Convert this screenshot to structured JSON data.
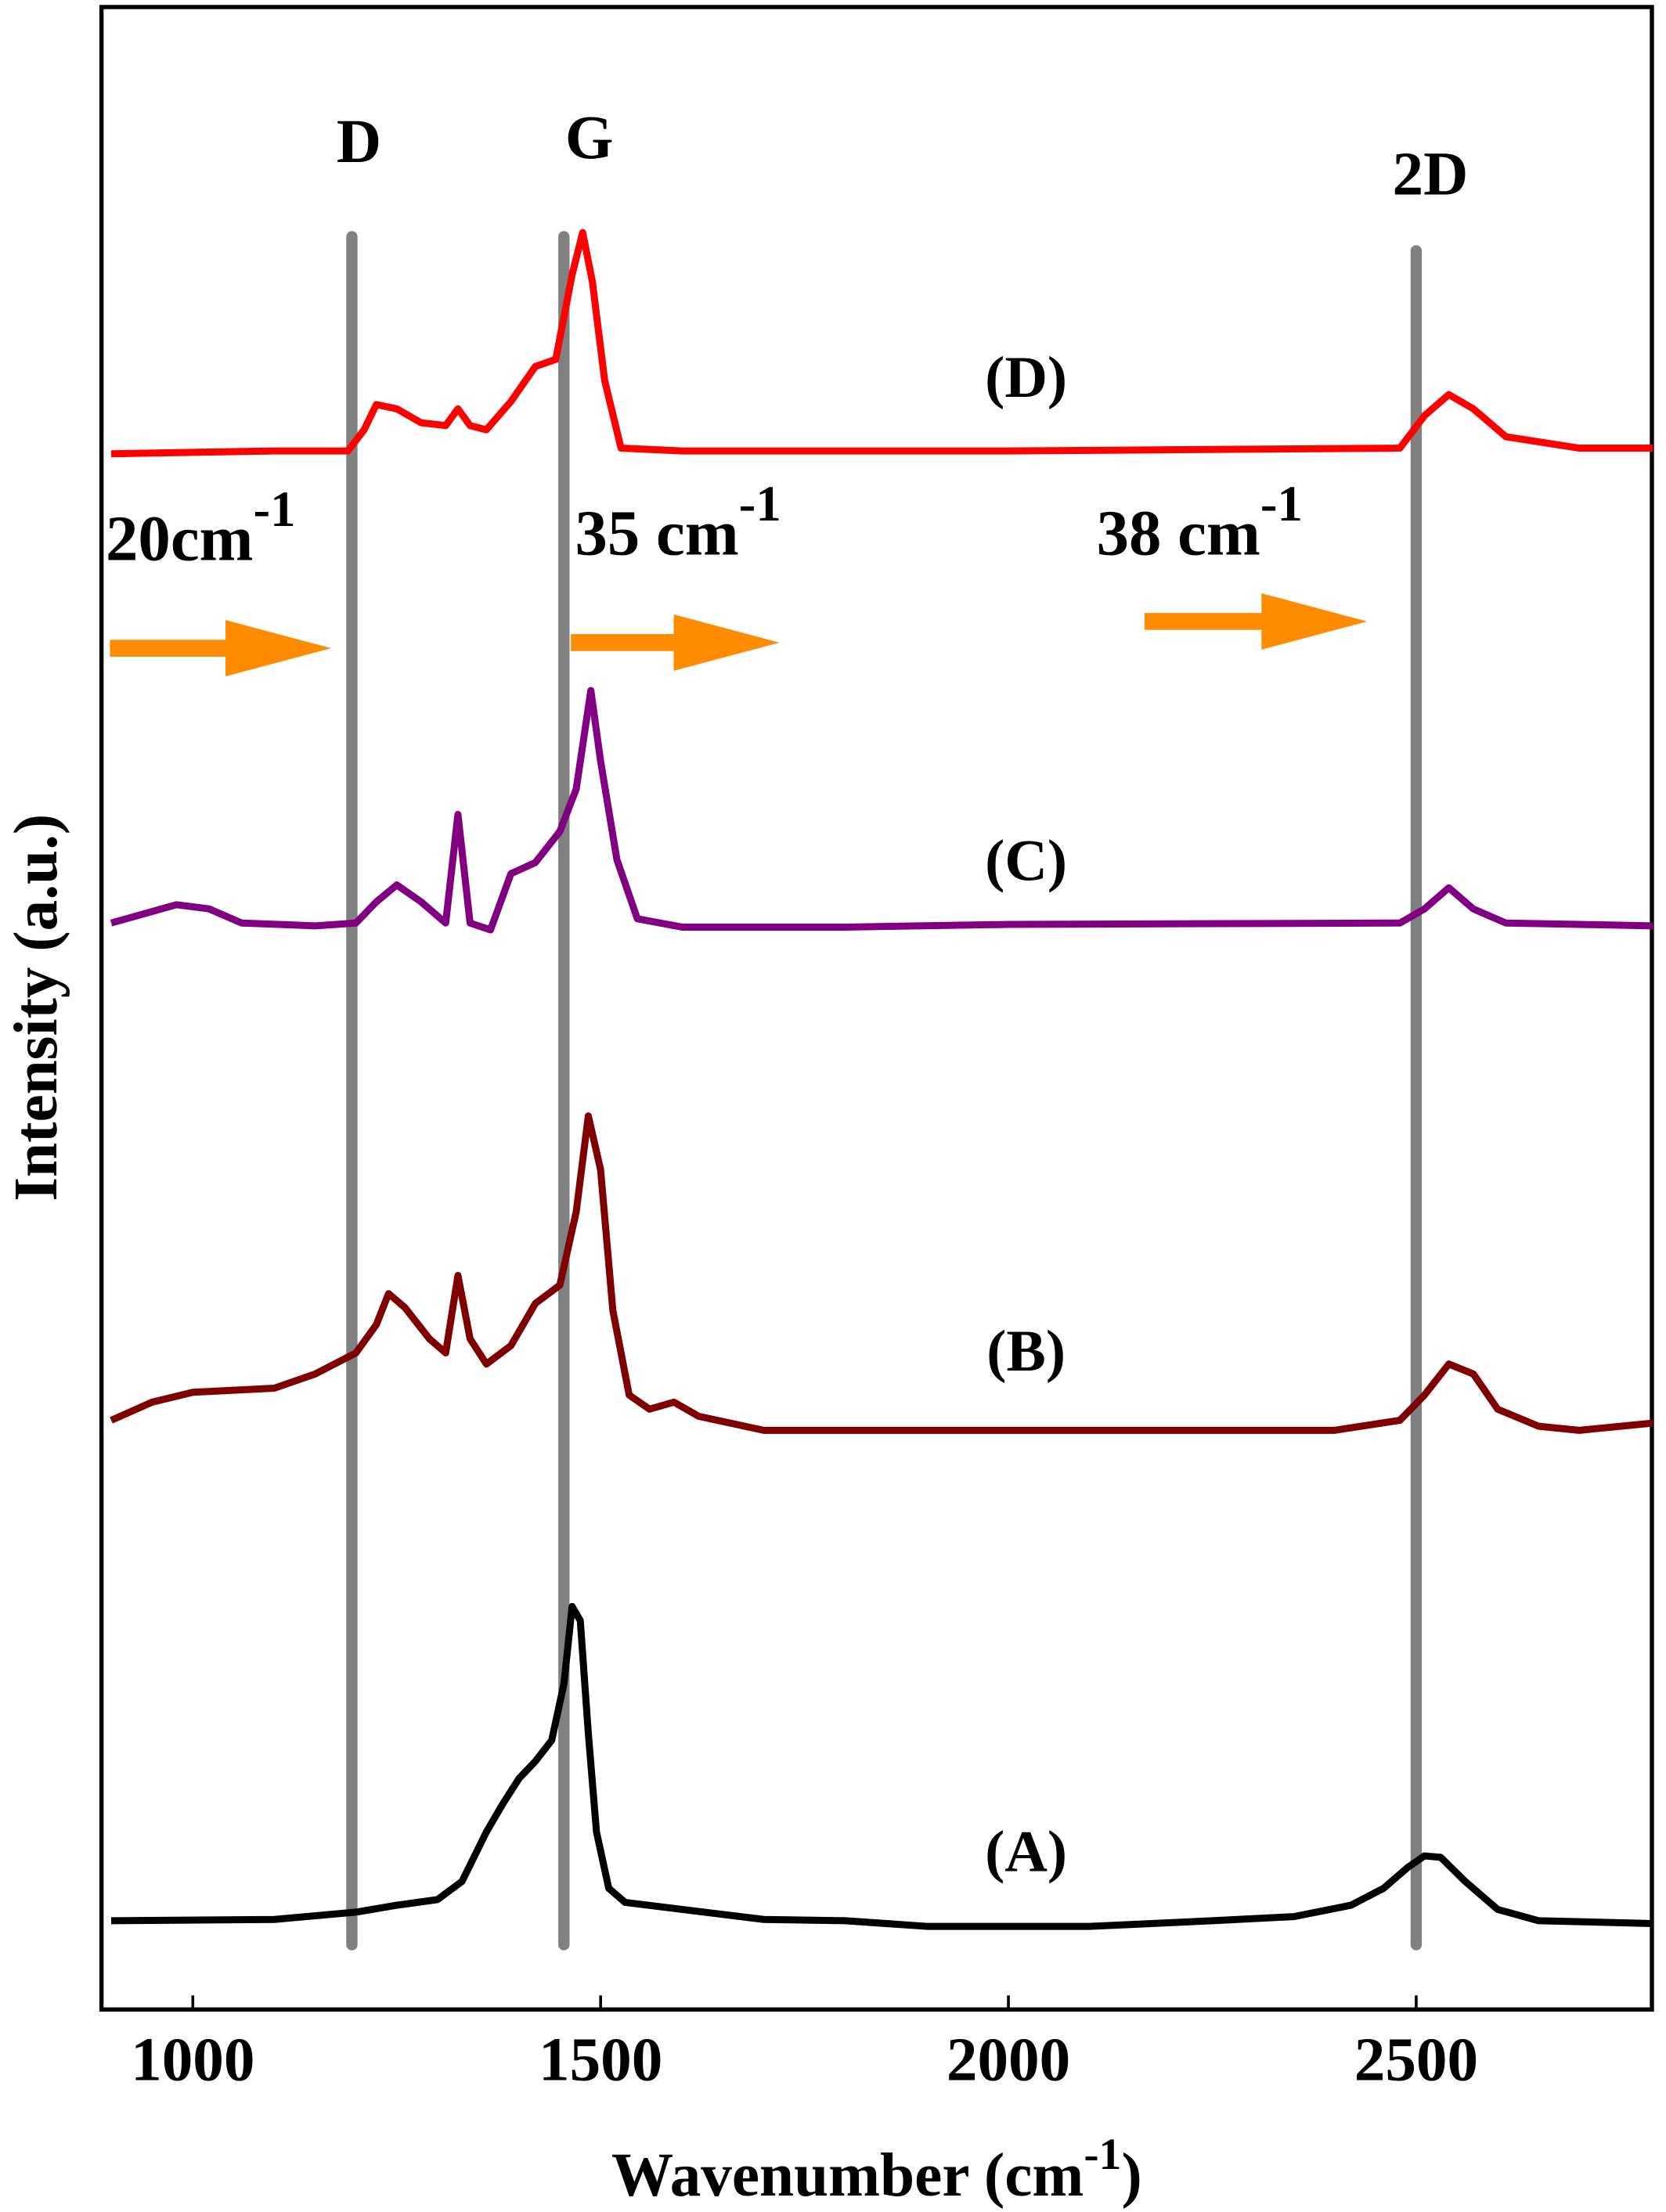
{
  "chart_data": {
    "type": "line",
    "x_label": "Wavenumber (cm",
    "x_label_sup": "-1",
    "x_label_end": ")",
    "y_label": "Intensity (a.u.)",
    "xlim": [
      888,
      2789
    ],
    "xticks": [
      1000,
      1500,
      2000,
      2500
    ],
    "ylim": [
      0,
      100
    ],
    "series": [
      {
        "name": "(A)",
        "color": "#000000",
        "x": [
          900,
          1100,
          1200,
          1250,
          1300,
          1330,
          1360,
          1380,
          1400,
          1420,
          1440,
          1455,
          1465,
          1475,
          1485,
          1495,
          1510,
          1530,
          1600,
          1700,
          1800,
          1900,
          2100,
          2250,
          2350,
          2420,
          2460,
          2490,
          2510,
          2530,
          2560,
          2600,
          2650,
          2790
        ],
        "values": [
          4.43,
          4.5,
          4.86,
          5.21,
          5.49,
          6.4,
          8.87,
          10.27,
          11.54,
          12.39,
          13.44,
          16.26,
          20.13,
          19.42,
          13.79,
          8.87,
          6.05,
          5.35,
          5.0,
          4.5,
          4.43,
          4.15,
          4.15,
          4.43,
          4.64,
          5.21,
          6.05,
          7.11,
          7.67,
          7.6,
          6.4,
          5.0,
          4.43,
          4.29
        ]
      },
      {
        "name": "(B)",
        "color": "#7f0000",
        "x": [
          900,
          950,
          1000,
          1100,
          1150,
          1200,
          1225,
          1240,
          1260,
          1290,
          1310,
          1325,
          1340,
          1360,
          1390,
          1420,
          1450,
          1470,
          1485,
          1500,
          1515,
          1535,
          1560,
          1590,
          1620,
          1700,
          2000,
          2400,
          2480,
          2510,
          2540,
          2570,
          2600,
          2650,
          2700,
          2790
        ],
        "values": [
          29.42,
          30.33,
          30.82,
          31.03,
          31.74,
          32.79,
          34.2,
          35.75,
          35.05,
          33.5,
          32.79,
          36.66,
          33.5,
          32.23,
          33.15,
          35.26,
          36.17,
          39.83,
          44.62,
          41.94,
          34.91,
          30.68,
          29.98,
          30.33,
          29.63,
          28.92,
          28.92,
          28.92,
          29.42,
          30.68,
          32.23,
          31.74,
          29.98,
          29.13,
          28.92,
          29.28
        ]
      },
      {
        "name": "(C)",
        "color": "#800080",
        "x": [
          900,
          980,
          1020,
          1060,
          1150,
          1200,
          1225,
          1250,
          1280,
          1310,
          1325,
          1340,
          1365,
          1390,
          1420,
          1450,
          1470,
          1488,
          1500,
          1520,
          1545,
          1600,
          1800,
          2000,
          2480,
          2510,
          2540,
          2570,
          2610,
          2700,
          2790
        ],
        "values": [
          54.26,
          55.17,
          54.96,
          54.26,
          54.12,
          54.26,
          55.31,
          56.16,
          55.31,
          54.26,
          59.68,
          54.26,
          53.91,
          56.72,
          57.28,
          58.83,
          60.94,
          65.87,
          62.35,
          57.42,
          54.47,
          54.05,
          54.05,
          54.19,
          54.26,
          54.96,
          56.02,
          54.96,
          54.26,
          54.19,
          54.12
        ]
      },
      {
        "name": "(D)",
        "color": "#ff0000",
        "x": [
          900,
          1100,
          1190,
          1210,
          1225,
          1250,
          1280,
          1310,
          1325,
          1340,
          1360,
          1390,
          1420,
          1445,
          1465,
          1478,
          1490,
          1505,
          1525,
          1600,
          2000,
          2480,
          2510,
          2540,
          2570,
          2610,
          2700,
          2790
        ],
        "values": [
          77.69,
          77.83,
          77.83,
          78.89,
          80.15,
          79.94,
          79.24,
          79.1,
          79.94,
          79.1,
          78.89,
          80.3,
          82.05,
          82.41,
          86.63,
          88.74,
          86.28,
          81.35,
          77.97,
          77.83,
          77.83,
          77.97,
          79.59,
          80.65,
          79.94,
          78.54,
          77.97,
          77.97
        ]
      }
    ],
    "markers": [
      {
        "label": "D",
        "x": 1195,
        "color": "#808080"
      },
      {
        "label": "G",
        "x": 1455,
        "color": "#808080"
      },
      {
        "label": "2D",
        "x": 2500,
        "color": "#808080"
      }
    ],
    "annotations": [
      {
        "text": "20cm",
        "sup": "-1",
        "color": "#ff8c00"
      },
      {
        "text": "35 cm",
        "sup": "-1",
        "color": "#ff8c00"
      },
      {
        "text": "38 cm",
        "sup": "-1",
        "color": "#ff8c00"
      }
    ]
  }
}
